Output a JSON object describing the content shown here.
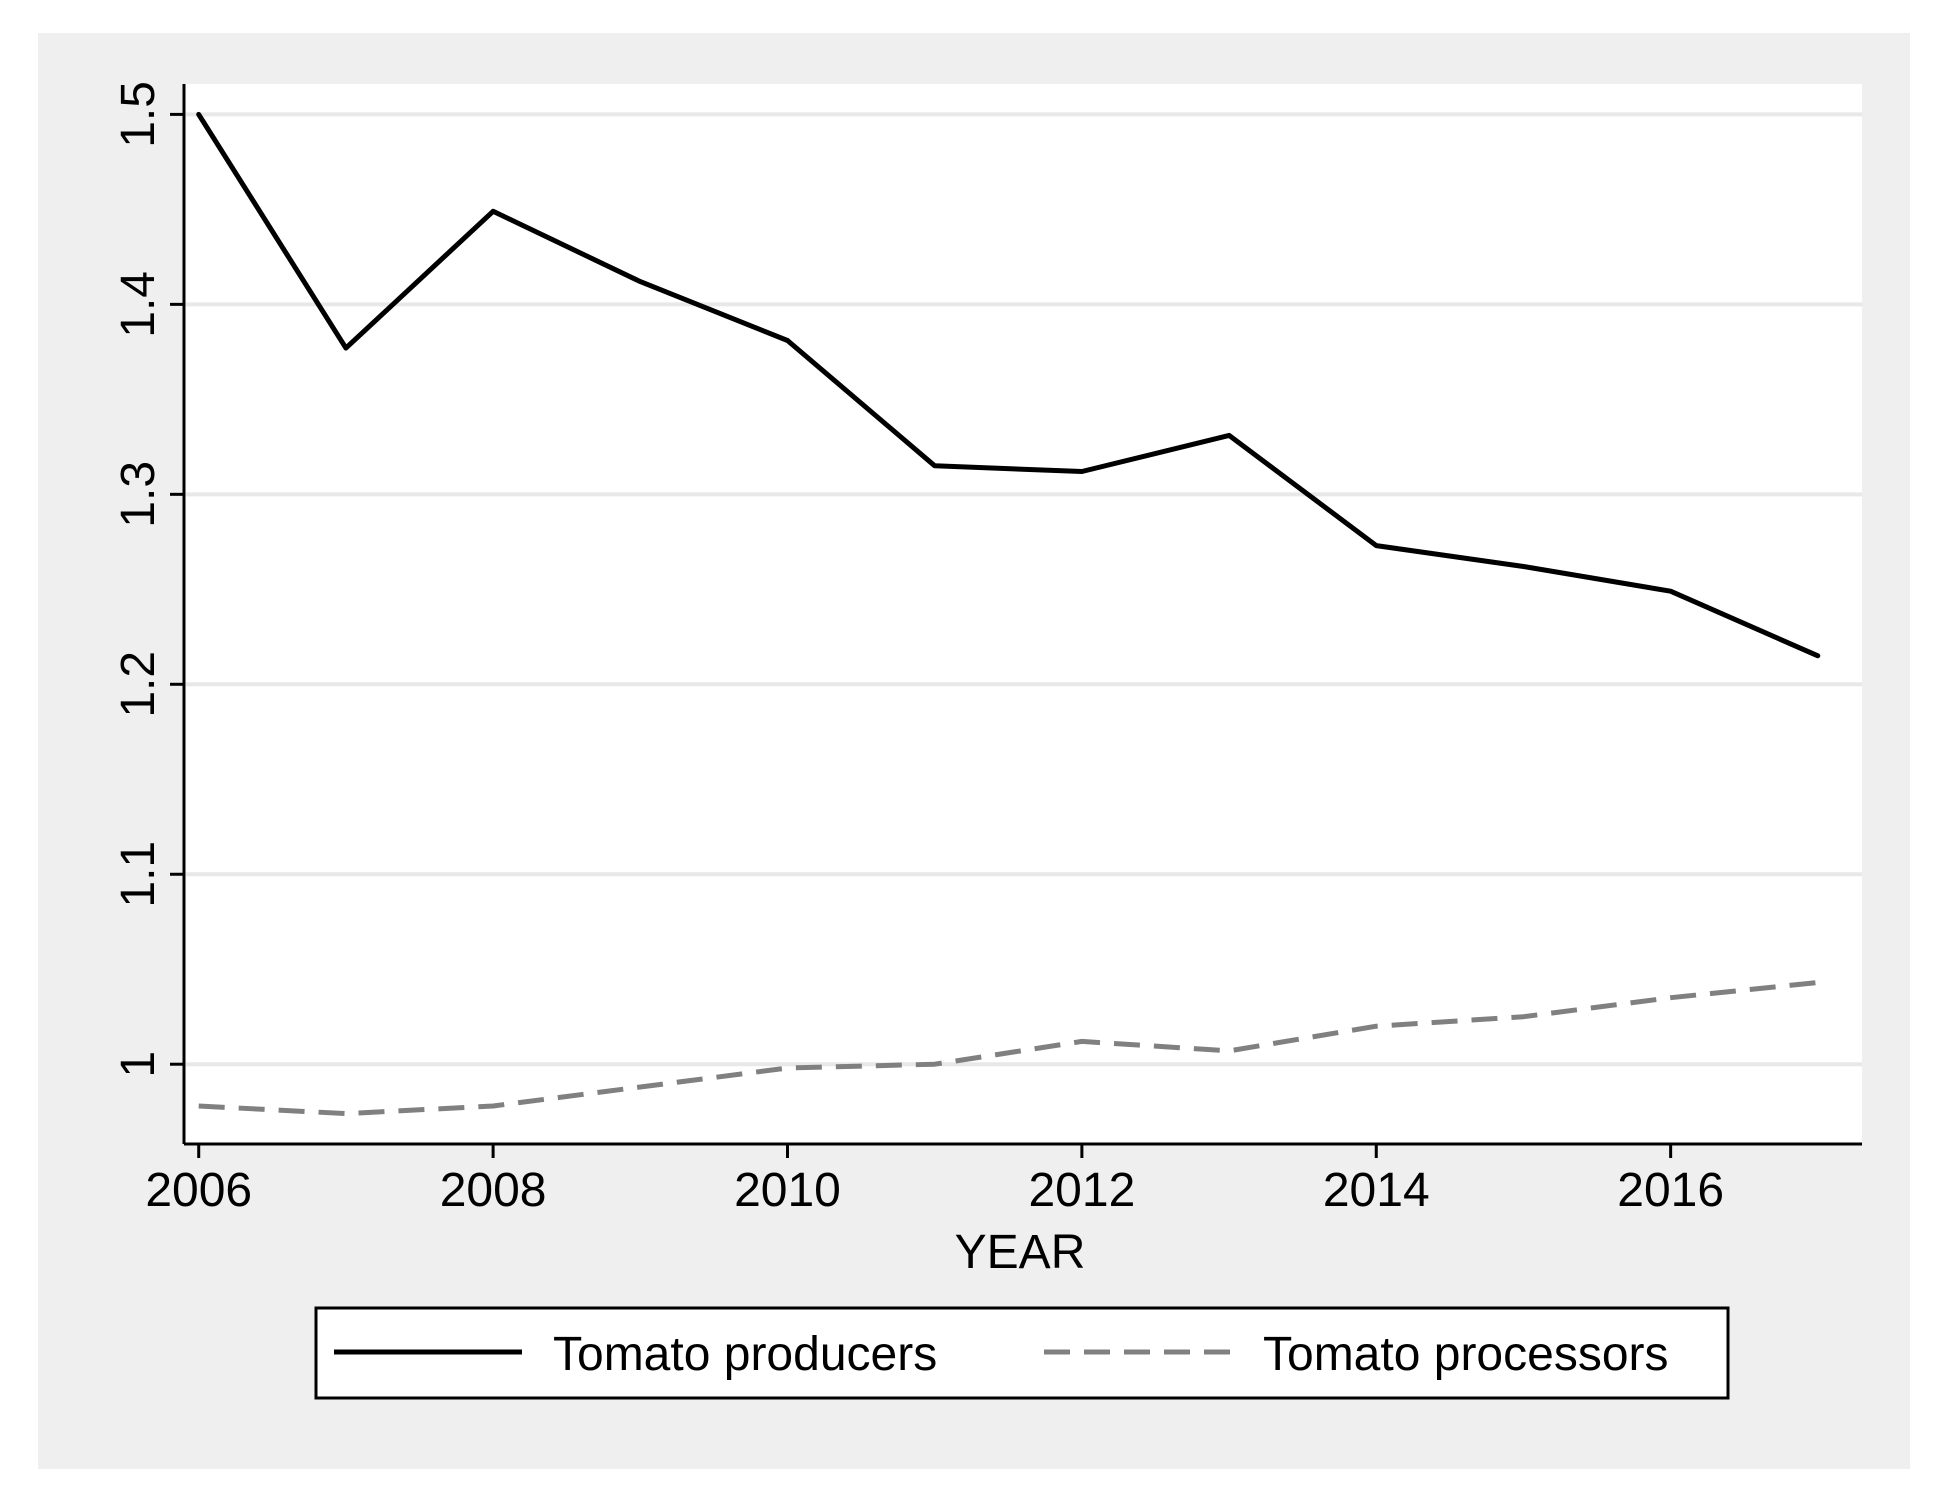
{
  "chart_data": {
    "type": "line",
    "title": "",
    "xlabel": "YEAR",
    "ylabel": "",
    "x": [
      2006,
      2007,
      2008,
      2009,
      2010,
      2011,
      2012,
      2013,
      2014,
      2015,
      2016,
      2017
    ],
    "xlim": [
      2005.9,
      2017.3
    ],
    "ylim": [
      0.958,
      1.516
    ],
    "xticks": [
      2006,
      2008,
      2010,
      2012,
      2014,
      2016
    ],
    "xtick_labels": [
      "2006",
      "2008",
      "2010",
      "2012",
      "2014",
      "2016"
    ],
    "yticks": [
      1.0,
      1.1,
      1.2,
      1.3,
      1.4,
      1.5
    ],
    "ytick_labels": [
      "1",
      "1.1",
      "1.2",
      "1.3",
      "1.4",
      "1.5"
    ],
    "grid": "horizontal",
    "legend_position": "bottom",
    "series": [
      {
        "name": "Tomato producers",
        "style": "solid",
        "color": "#000000",
        "values": [
          1.5,
          1.377,
          1.449,
          1.412,
          1.381,
          1.315,
          1.312,
          1.331,
          1.273,
          1.262,
          1.249,
          1.215
        ]
      },
      {
        "name": "Tomato processors",
        "style": "dashed",
        "color": "#808080",
        "values": [
          0.978,
          0.974,
          0.978,
          0.988,
          0.998,
          1.0,
          1.012,
          1.007,
          1.02,
          1.025,
          1.035,
          1.043
        ]
      }
    ],
    "colors": {
      "outer_background": "#efefef",
      "plot_background": "#ffffff",
      "gridline": "#e8e8e8",
      "axis": "#000000"
    }
  }
}
